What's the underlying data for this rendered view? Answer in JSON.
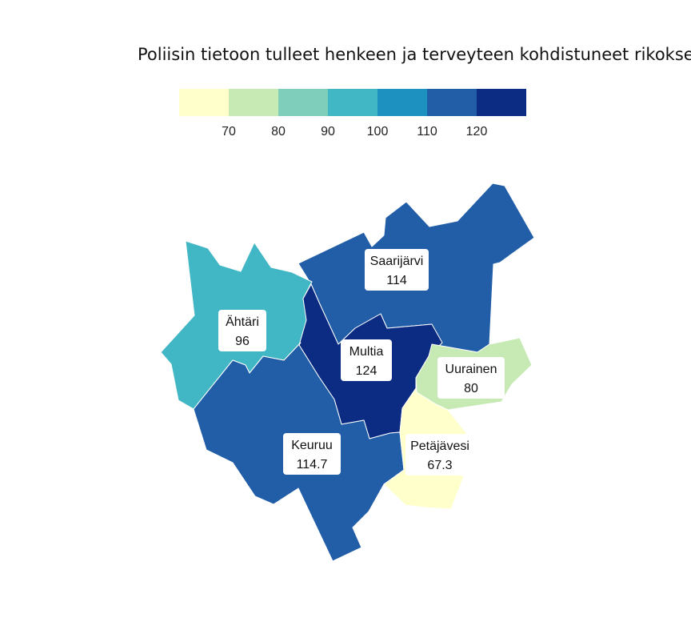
{
  "title": "Poliisin tietoon tulleet henkeen ja terveyteen kohdistuneet rikokset",
  "legend": {
    "bins": [
      {
        "color": "#ffffcc"
      },
      {
        "color": "#c7e9b4"
      },
      {
        "color": "#7fcdbb"
      },
      {
        "color": "#41b6c4"
      },
      {
        "color": "#1d91c0"
      },
      {
        "color": "#225ea8"
      },
      {
        "color": "#0c2c84"
      }
    ],
    "ticks": [
      "70",
      "80",
      "90",
      "100",
      "110",
      "120"
    ]
  },
  "regions": [
    {
      "id": "saarijarvi",
      "name": "Saarijärvi",
      "value": "114",
      "color": "#225ea8"
    },
    {
      "id": "ahtari",
      "name": "Ähtäri",
      "value": "96",
      "color": "#41b6c4"
    },
    {
      "id": "multia",
      "name": "Multia",
      "value": "124",
      "color": "#0c2c84"
    },
    {
      "id": "uurainen",
      "name": "Uurainen",
      "value": "80",
      "color": "#c7e9b4"
    },
    {
      "id": "keuruu",
      "name": "Keuruu",
      "value": "114.7",
      "color": "#225ea8"
    },
    {
      "id": "petajavesi",
      "name": "Petäjävesi",
      "value": "67.3",
      "color": "#ffffcc"
    }
  ]
}
